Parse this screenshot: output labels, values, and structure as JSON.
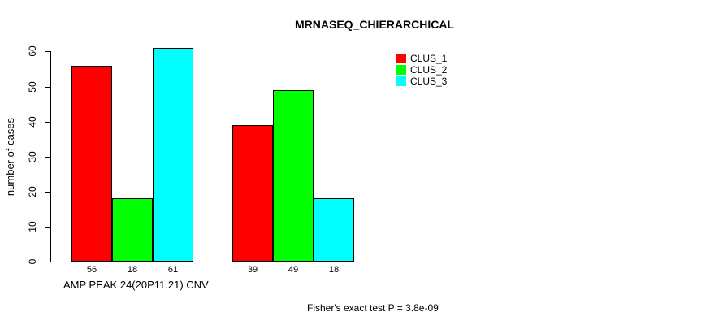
{
  "chart_data": {
    "type": "bar",
    "grouped": true,
    "title": "MRNASEQ_CHIERARCHICAL",
    "ylabel": "number of cases",
    "xlabel": "AMP PEAK 24(20P11.21) CNV",
    "annotation": "Fisher's exact test P = 3.8e-09",
    "ylim": [
      0,
      60
    ],
    "yticks": [
      0,
      10,
      20,
      30,
      40,
      50,
      60
    ],
    "grid": false,
    "legend_position": "top-right",
    "series": [
      {
        "name": "CLUS_1",
        "color": "#FF0000",
        "values": [
          56,
          39
        ]
      },
      {
        "name": "CLUS_2",
        "color": "#00FF00",
        "values": [
          18,
          49
        ]
      },
      {
        "name": "CLUS_3",
        "color": "#00FFFF",
        "values": [
          61,
          18
        ]
      }
    ],
    "bar_value_labels": [
      [
        56,
        18,
        61
      ],
      [
        39,
        49,
        18
      ]
    ]
  }
}
